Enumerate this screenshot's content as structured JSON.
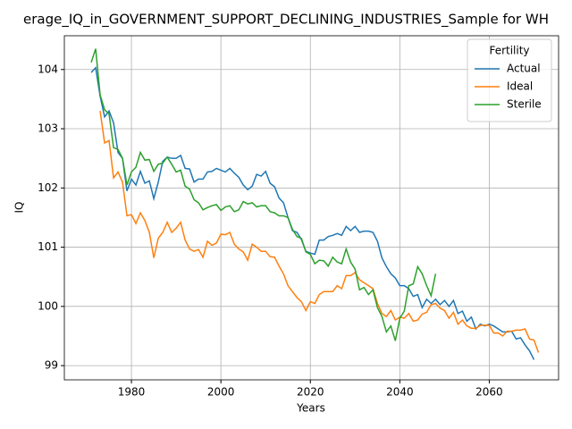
{
  "chart_data": {
    "type": "line",
    "title": "erage_IQ_in_GOVERNMENT_SUPPORT_DECLINING_INDUSTRIES_Sample for WH",
    "xlabel": "Years",
    "ylabel": "IQ",
    "x": [
      1971,
      1972,
      1973,
      1974,
      1975,
      1976,
      1977,
      1978,
      1979,
      1980,
      1981,
      1982,
      1983,
      1984,
      1985,
      1986,
      1987,
      1988,
      1989,
      1990,
      1991,
      1992,
      1993,
      1994,
      1995,
      1996,
      1997,
      1998,
      1999,
      2000,
      2001,
      2002,
      2003,
      2004,
      2005,
      2006,
      2007,
      2008,
      2009,
      2010,
      2011,
      2012,
      2013,
      2014,
      2015,
      2016,
      2017,
      2018,
      2019,
      2020,
      2021,
      2022,
      2023,
      2024,
      2025,
      2026,
      2027,
      2028,
      2029,
      2030,
      2031,
      2032,
      2033,
      2034,
      2035,
      2036,
      2037,
      2038,
      2039,
      2040,
      2041,
      2042,
      2043,
      2044,
      2045,
      2046,
      2047,
      2048,
      2049,
      2050,
      2051,
      2052,
      2053,
      2054,
      2055,
      2056,
      2057,
      2058,
      2059,
      2060,
      2061,
      2062,
      2063,
      2064,
      2065,
      2066,
      2067,
      2068,
      2069,
      2070,
      2071
    ],
    "series": [
      {
        "name": "Actual",
        "color": "#1f77b4",
        "values": [
          103.95,
          104.03,
          103.55,
          103.2,
          103.3,
          103.1,
          102.6,
          102.5,
          101.95,
          102.15,
          102.05,
          102.28,
          102.08,
          102.12,
          101.82,
          102.1,
          102.45,
          102.52,
          102.5,
          102.5,
          102.55,
          102.33,
          102.32,
          102.1,
          102.15,
          102.15,
          102.27,
          102.28,
          102.33,
          102.3,
          102.27,
          102.33,
          102.25,
          102.18,
          102.05,
          101.97,
          102.03,
          102.23,
          102.2,
          102.28,
          102.08,
          102.02,
          101.83,
          101.75,
          101.5,
          101.28,
          101.25,
          101.13,
          100.93,
          100.9,
          100.88,
          101.12,
          101.12,
          101.18,
          101.2,
          101.23,
          101.2,
          101.35,
          101.28,
          101.35,
          101.25,
          101.27,
          101.27,
          101.25,
          101.1,
          100.82,
          100.67,
          100.55,
          100.48,
          100.35,
          100.35,
          100.3,
          100.17,
          100.2,
          99.98,
          100.12,
          100.05,
          100.12,
          100.03,
          100.1,
          100.0,
          100.1,
          99.88,
          99.92,
          99.75,
          99.82,
          99.62,
          99.7,
          99.67,
          99.7,
          99.67,
          99.62,
          99.57,
          99.57,
          99.58,
          99.45,
          99.47,
          99.35,
          99.25,
          99.1,
          null
        ]
      },
      {
        "name": "Ideal",
        "color": "#ff7f0e",
        "values": [
          null,
          null,
          103.3,
          102.76,
          102.8,
          102.17,
          102.27,
          102.1,
          101.53,
          101.55,
          101.4,
          101.58,
          101.45,
          101.25,
          100.82,
          101.15,
          101.25,
          101.42,
          101.25,
          101.32,
          101.42,
          101.12,
          100.97,
          100.93,
          100.96,
          100.83,
          101.1,
          101.03,
          101.07,
          101.22,
          101.21,
          101.25,
          101.05,
          100.97,
          100.92,
          100.78,
          101.05,
          101.0,
          100.93,
          100.93,
          100.84,
          100.83,
          100.68,
          100.55,
          100.35,
          100.25,
          100.15,
          100.08,
          99.93,
          100.08,
          100.05,
          100.2,
          100.25,
          100.25,
          100.25,
          100.35,
          100.3,
          100.52,
          100.52,
          100.57,
          100.45,
          100.4,
          100.35,
          100.3,
          100.05,
          99.88,
          99.83,
          99.93,
          99.77,
          99.82,
          99.8,
          99.88,
          99.75,
          99.77,
          99.87,
          99.9,
          100.03,
          100.05,
          99.97,
          99.93,
          99.8,
          99.9,
          99.7,
          99.77,
          99.67,
          99.63,
          99.63,
          99.68,
          99.68,
          99.68,
          99.55,
          99.55,
          99.5,
          99.58,
          99.58,
          99.6,
          99.6,
          99.62,
          99.45,
          99.43,
          99.22
        ]
      },
      {
        "name": "Sterile",
        "color": "#2ca02c",
        "values": [
          104.12,
          104.35,
          103.57,
          103.32,
          103.25,
          102.68,
          102.65,
          102.5,
          102.05,
          102.27,
          102.35,
          102.6,
          102.47,
          102.48,
          102.28,
          102.4,
          102.42,
          102.52,
          102.4,
          102.27,
          102.3,
          102.03,
          101.98,
          101.8,
          101.75,
          101.63,
          101.67,
          101.7,
          101.72,
          101.62,
          101.68,
          101.7,
          101.6,
          101.63,
          101.77,
          101.73,
          101.75,
          101.68,
          101.7,
          101.7,
          101.6,
          101.58,
          101.53,
          101.53,
          101.5,
          101.3,
          101.18,
          101.15,
          100.92,
          100.88,
          100.72,
          100.78,
          100.77,
          100.68,
          100.83,
          100.75,
          100.72,
          100.97,
          100.75,
          100.63,
          100.28,
          100.32,
          100.2,
          100.28,
          99.98,
          99.83,
          99.57,
          99.67,
          99.42,
          99.8,
          99.92,
          100.35,
          100.38,
          100.67,
          100.55,
          100.35,
          100.18,
          100.55,
          null,
          null,
          null,
          null,
          null,
          null,
          null,
          null,
          null,
          null,
          null,
          null,
          null,
          null,
          null,
          null,
          null,
          null,
          null,
          null,
          null,
          null,
          null
        ]
      }
    ],
    "xlim": [
      1965,
      2075.5
    ],
    "xticks": [
      1980,
      2000,
      2020,
      2040,
      2060
    ],
    "ylim": [
      98.76,
      104.57
    ],
    "yticks": [
      99,
      100,
      101,
      102,
      103,
      104
    ],
    "grid": true,
    "legend": "upper right",
    "legend_title": "Fertility"
  }
}
